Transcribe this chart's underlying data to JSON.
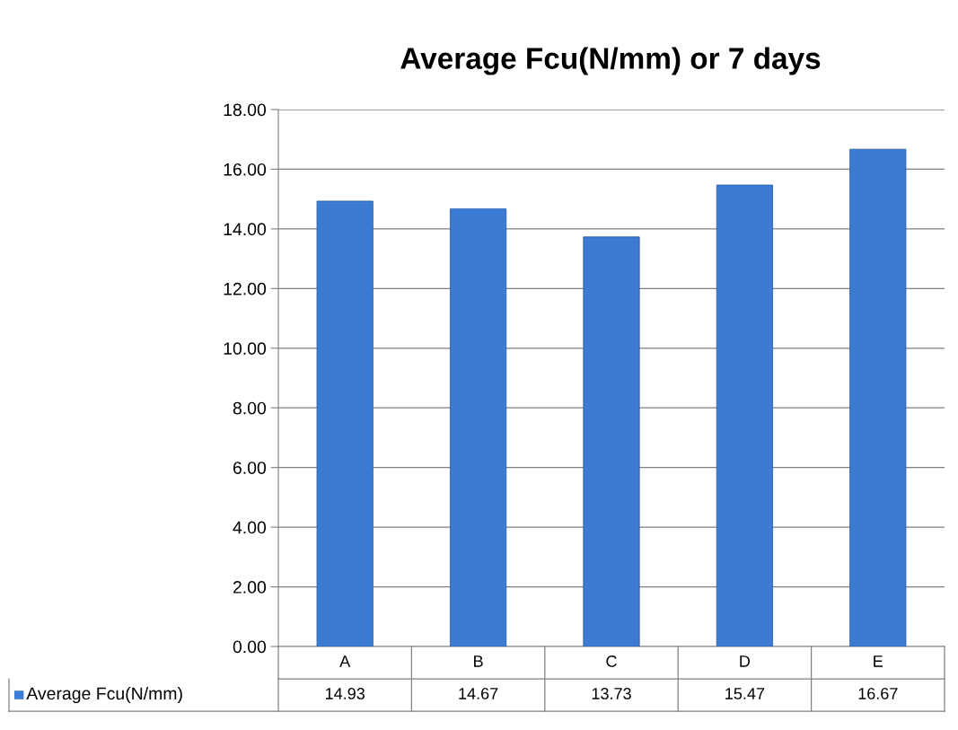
{
  "chart_data": {
    "type": "bar",
    "title": "Average Fcu(N/mm) or 7 days",
    "categories": [
      "A",
      "B",
      "C",
      "D",
      "E"
    ],
    "series": [
      {
        "name": "Average Fcu(N/mm)",
        "color": "#3b7bd4",
        "values": [
          14.93,
          14.67,
          13.73,
          15.47,
          16.67
        ]
      }
    ],
    "ylim": [
      0,
      18
    ],
    "yticks": [
      {
        "value": 0,
        "label": "0.00"
      },
      {
        "value": 2,
        "label": "2.00"
      },
      {
        "value": 4,
        "label": "4.00"
      },
      {
        "value": 6,
        "label": "6.00"
      },
      {
        "value": 8,
        "label": "8.00"
      },
      {
        "value": 10,
        "label": "10.00"
      },
      {
        "value": 12,
        "label": "12.00"
      },
      {
        "value": 14,
        "label": "14.00"
      },
      {
        "value": 16,
        "label": "16.00"
      },
      {
        "value": 18,
        "label": "18.00"
      }
    ],
    "grid": "y",
    "legend": "bottom",
    "data_labels": true
  }
}
